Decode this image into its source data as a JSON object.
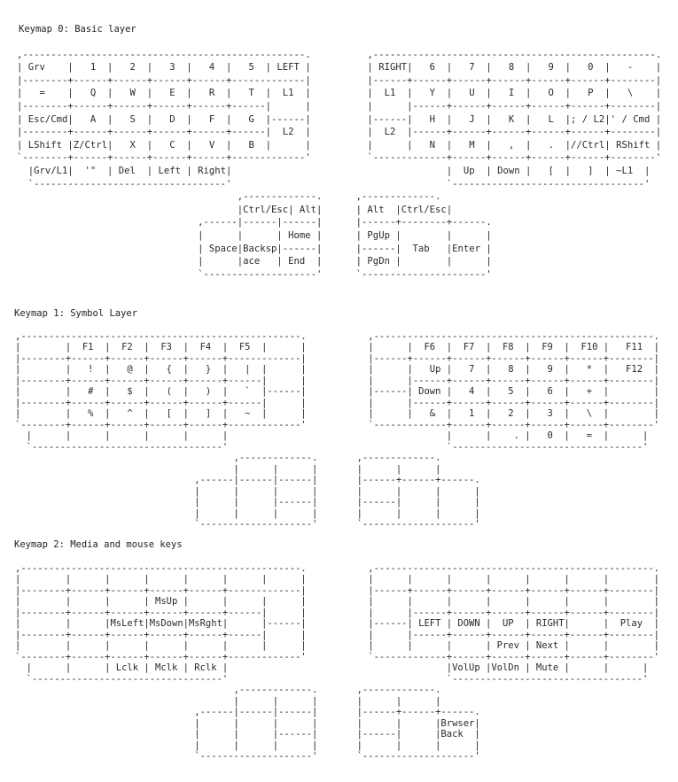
{
  "sections": [
    {
      "title": "Keymap 0: Basic layer",
      "lines": [
        ",--------------------------------------------------.          ,--------------------------------------------------.",
        "| Grv    |   1  |   2  |   3  |   4  |   5  | LEFT |          | RIGHT|   6  |   7  |   8  |   9  |   0  |   -    |",
        "|--------+------+------+------+------+-------------|          |------+------+------+------+------+------+--------|",
        "|   =    |   Q  |   W  |   E  |   R  |   T  |  L1  |          |  L1  |   Y  |   U  |   I  |   O  |   P  |   \\    |",
        "|--------+------+------+------+------+------|      |          |      |------+------+------+------+------+--------|",
        "| Esc/Cmd|   A  |   S  |   D  |   F  |   G  |------|          |------|   H  |   J  |   K  |   L  |; / L2|' / Cmd |",
        "|--------+------+------+------+------+------|  L2  |          |  L2  |------+------+------+------+------+--------|",
        "| LShift |Z/Ctrl|   X  |   C  |   V  |   B  |      |          |      |   N  |   M  |   ,  |   .  |//Ctrl| RShift |",
        "`--------+------+------+------+------+-------------'          `-------------+------+------+------+------+--------'",
        "  |Grv/L1|  '\"  | Del  | Left | Right|                                      |  Up  | Down |   [  |   ]  | ~L1  |",
        "  `----------------------------------'                                      `----------------------------------'",
        "                                       ,-------------.      ,-------------.",
        "                                       |Ctrl/Esc| Alt|      | Alt  |Ctrl/Esc|",
        "                                ,------|------|------|      |------+--------+------.",
        "                                |      |      | Home |      | PgUp |        |      |",
        "                                | Space|Backsp|------|      |------|  Tab   |Enter |",
        "                                |      |ace   | End  |      | PgDn |        |      |",
        "                                `--------------------'      `----------------------'"
      ]
    },
    {
      "title": "Keymap 1: Symbol Layer",
      "lines": [
        ",--------------------------------------------------.           ,--------------------------------------------------.",
        "|        |  F1  |  F2  |  F3  |  F4  |  F5  |      |           |      |  F6  |  F7  |  F8  |  F9  |  F10 |   F11  |",
        "|--------+------+------+------+------+-------------|           |------+------+------+------+------+------+--------|",
        "|        |   !  |   @  |   {  |   }  |   |  |      |           |      |   Up |   7  |   8  |   9  |   *  |   F12  |",
        "|--------+------+------+------+------+------|      |           |      |------+------+------+------+------+--------|",
        "|        |   #  |   $  |   (  |   )  |   `  |------|           |------| Down |   4  |   5  |   6  |   +  |        |",
        "|--------+------+------+------+------+------|      |           |      |------+------+------+------+------+--------|",
        "|        |   %  |   ^  |   [  |   ]  |   ~  |      |           |      |   &  |   1  |   2  |   3  |   \\  |        |",
        "`--------+------+------+------+------+-------------'           `-------------+------+------+------+------+--------'",
        "  |      |      |      |      |      |                                       |      |    . |   0  |   =  |      |",
        "  `----------------------------------'                                       `----------------------------------'",
        "                                       ,-------------.       ,-------------.",
        "                                       |      |      |       |      |      |",
        "                                ,------|------|------|       |------+------+------.",
        "                                |      |      |      |       |      |      |      |",
        "                                |      |      |------|       |------|      |      |",
        "                                |      |      |      |       |      |      |      |",
        "                                `--------------------'       `--------------------'"
      ]
    },
    {
      "title": "Keymap 2: Media and mouse keys",
      "lines": [
        ",--------------------------------------------------.           ,--------------------------------------------------.",
        "|        |      |      |      |      |      |      |           |      |      |      |      |      |      |        |",
        "|--------+------+------+------+------+-------------|           |------+------+------+------+------+------+--------|",
        "|        |      |      | MsUp |      |      |      |           |      |      |      |      |      |      |        |",
        "|--------+------+------+------+------+------|      |           |      |------+------+------+------+------+--------|",
        "|        |      |MsLeft|MsDown|MsRght|      |------|           |------| LEFT | DOWN |  UP  | RIGHT|      |  Play  |",
        "|--------+------+------+------+------+------|      |           |      |------+------+------+------+------+--------|",
        "|        |      |      |      |      |      |      |           |      |      |      | Prev | Next |      |        |",
        "`--------+------+------+------+------+-------------'           `-------------+------+------+------+------+--------'",
        "  |      |      | Lclk | Mclk | Rclk |                                       |VolUp |VolDn | Mute |      |      |",
        "  `----------------------------------'                                       `----------------------------------'",
        "                                       ,-------------.       ,-------------.",
        "                                       |      |      |       |      |      |",
        "                                ,------|------|------|       |------+------+------.",
        "                                |      |      |      |       |      |      |Brwser|",
        "                                |      |      |------|       |------|      |Back  |",
        "                                |      |      |      |       |      |      |      |",
        "                                `--------------------'       `--------------------'"
      ]
    }
  ]
}
